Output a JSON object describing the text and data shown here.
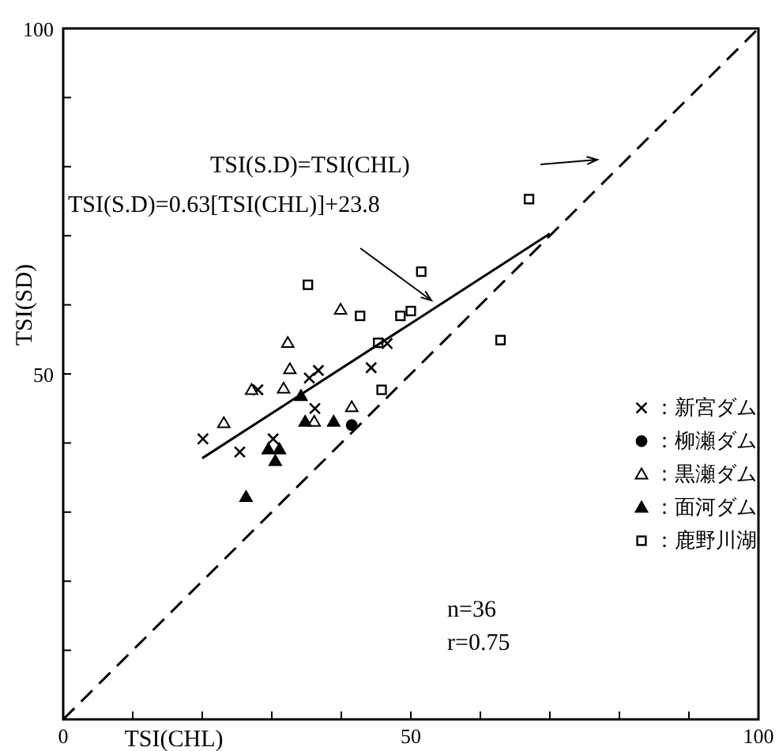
{
  "chart_data": {
    "type": "scatter",
    "xlabel": "TSI(CHL)",
    "ylabel": "TSI(SD)",
    "xlim": [
      0,
      100
    ],
    "ylim": [
      0,
      100
    ],
    "xticks": [
      0,
      {
        "value": 10,
        "label": null
      },
      {
        "value": 20,
        "label": null
      },
      {
        "value": 30,
        "label": null
      },
      {
        "value": 40,
        "label": null
      },
      50,
      {
        "value": 60,
        "label": null
      },
      {
        "value": 70,
        "label": null
      },
      {
        "value": 80,
        "label": null
      },
      {
        "value": 90,
        "label": null
      },
      100
    ],
    "yticks": [
      {
        "value": 10,
        "label": null
      },
      {
        "value": 20,
        "label": null
      },
      {
        "value": 30,
        "label": null
      },
      {
        "value": 40,
        "label": null
      },
      50,
      {
        "value": 60,
        "label": null
      },
      {
        "value": 70,
        "label": null
      },
      {
        "value": 80,
        "label": null
      },
      {
        "value": 90,
        "label": null
      },
      100
    ],
    "grid": false,
    "legend": "right",
    "series": [
      {
        "name": "：新宮ダム",
        "marker": "cross",
        "color": "#000000",
        "x": [
          20.1,
          25.4,
          28.0,
          30.2,
          35.4,
          36.7,
          36.2,
          44.3,
          46.6
        ],
        "values": [
          40.6,
          38.7,
          47.7,
          40.6,
          49.4,
          50.5,
          45.0,
          50.9,
          54.4
        ]
      },
      {
        "name": "：柳瀬ダム",
        "marker": "circle",
        "color": "#000000",
        "x": [
          41.5
        ],
        "values": [
          42.6
        ]
      },
      {
        "name": "：黒瀬ダム",
        "marker": "triangle",
        "color": "#000000",
        "x": [
          23.1,
          27.1,
          31.7,
          32.6,
          32.3,
          39.9,
          41.5,
          36.1
        ],
        "values": [
          42.9,
          47.7,
          47.9,
          50.7,
          54.5,
          59.3,
          45.2,
          43.1
        ]
      },
      {
        "name": "：面河ダム",
        "marker": "triangle",
        "color": "#000000",
        "x": [
          34.8,
          38.9,
          34.2,
          29.5,
          31.1,
          30.5,
          26.3
        ],
        "values": [
          43.1,
          43.1,
          46.8,
          39.1,
          39.1,
          37.4,
          32.2
        ]
      },
      {
        "name": "：鹿野川湖",
        "marker": "square",
        "color": "#000000",
        "x": [
          35.2,
          42.7,
          48.5,
          50.0,
          51.5,
          45.3,
          45.8,
          67.0,
          62.9
        ],
        "values": [
          62.9,
          58.4,
          58.4,
          59.1,
          64.8,
          54.5,
          47.7,
          75.3,
          54.9
        ]
      },
      {
        "type": "line",
        "line_style": "solid",
        "color": "#000000",
        "x": [
          20,
          70
        ],
        "values": [
          37.8,
          70.3
        ]
      },
      {
        "type": "line",
        "line_style": "dashed",
        "color": "#000000",
        "x": [
          0,
          100
        ],
        "values": [
          0,
          100
        ]
      }
    ],
    "annotations": [
      "TSI(S.D)=TSI(CHL)",
      "TSI(S.D)=0.63[TSI(CHL)]+23.8",
      "n=36",
      "r=0.75"
    ]
  }
}
